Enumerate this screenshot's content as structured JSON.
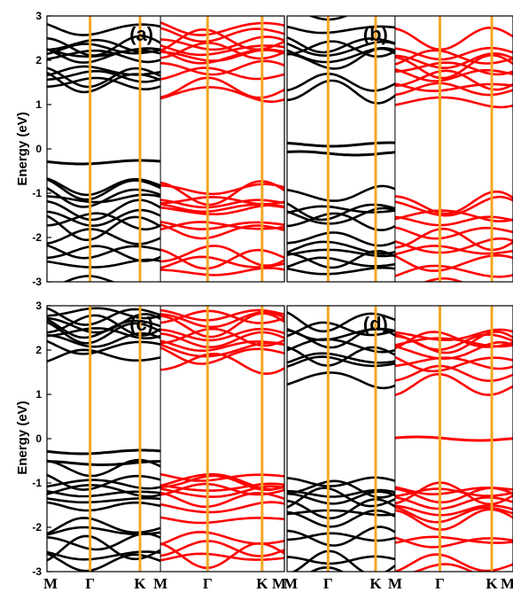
{
  "chart_data": [
    {
      "type": "line",
      "panel_label": "(a)",
      "ylabel": "Energy (eV)",
      "ylim": [
        -3,
        3
      ],
      "yticks": [
        "3",
        "2",
        "1",
        "0",
        "-1",
        "-2",
        "-3"
      ],
      "xticks": [
        "M",
        "Γ",
        "K",
        "M",
        "Γ",
        "K",
        "M"
      ],
      "sub_panels": [
        {
          "color": "#000000",
          "conduction_bands": [
            2.55,
            2.45,
            2.35,
            2.25,
            2.15,
            2.05,
            1.95,
            1.85,
            1.75,
            1.6,
            1.45,
            1.3
          ],
          "flat_bands": [
            -0.3
          ],
          "valence_bands": [
            -1.0,
            -1.1,
            -1.2,
            -1.3,
            -1.45,
            -1.55,
            -1.7,
            -1.85,
            -2.0,
            -2.2,
            -2.45,
            -2.7,
            -2.9
          ]
        },
        {
          "color": "#ff0000",
          "conduction_bands": [
            2.65,
            2.55,
            2.45,
            2.35,
            2.25,
            2.1,
            2.0,
            1.9,
            1.8,
            1.7,
            1.55,
            1.45
          ],
          "flat_bands": [],
          "valence_bands": [
            -1.0,
            -1.1,
            -1.2,
            -1.3,
            -1.4,
            -1.5,
            -1.65,
            -1.8,
            -2.0,
            -2.2,
            -2.45,
            -2.65,
            -2.85
          ]
        }
      ]
    },
    {
      "type": "line",
      "panel_label": "(b)",
      "ylabel": "",
      "ylim": [
        -3,
        3
      ],
      "yticks": [],
      "xticks": [
        "M",
        "Γ",
        "K",
        "M",
        "Γ",
        "K",
        "M"
      ],
      "sub_panels": [
        {
          "color": "#000000",
          "conduction_bands": [
            2.95,
            2.6,
            2.4,
            2.2,
            2.05,
            1.9,
            1.8,
            1.65,
            1.5
          ],
          "flat_bands": [
            0.1,
            -0.1
          ],
          "valence_bands": [
            -1.2,
            -1.3,
            -1.45,
            -1.6,
            -1.75,
            -1.9,
            -2.05,
            -2.25,
            -2.45,
            -2.65,
            -2.85
          ]
        },
        {
          "color": "#ff0000",
          "conduction_bands": [
            3.0,
            2.3,
            2.2,
            2.05,
            1.95,
            1.85,
            1.75,
            1.65,
            1.55,
            1.45,
            1.3,
            1.2
          ],
          "flat_bands": [],
          "valence_bands": [
            -1.35,
            -1.45,
            -1.55,
            -1.7,
            -1.85,
            -2.0,
            -2.2,
            -2.4,
            -2.6,
            -2.8,
            -2.95
          ]
        }
      ]
    },
    {
      "type": "line",
      "panel_label": "(c)",
      "ylabel": "Energy (eV)",
      "ylim": [
        -3,
        3
      ],
      "yticks": [
        "3",
        "2",
        "1",
        "0",
        "-1",
        "-2",
        "-3"
      ],
      "xticks": [
        "M",
        "Γ",
        "K",
        "M",
        "Γ",
        "K",
        "M"
      ],
      "sub_panels": [
        {
          "color": "#000000",
          "conduction_bands": [
            2.95,
            2.75,
            2.6,
            2.5,
            2.4,
            2.3,
            2.2,
            2.1,
            2.0,
            1.9
          ],
          "flat_bands": [
            -0.3,
            -0.55
          ],
          "valence_bands": [
            -0.8,
            -0.9,
            -1.0,
            -1.15,
            -1.3,
            -1.45,
            -1.6,
            -1.8,
            -2.0,
            -2.25,
            -2.5,
            -2.75,
            -2.95
          ]
        },
        {
          "color": "#ff0000",
          "conduction_bands": [
            2.85,
            2.7,
            2.55,
            2.45,
            2.35,
            2.25,
            2.1,
            2.0,
            1.9,
            1.8,
            1.7
          ],
          "flat_bands": [],
          "valence_bands": [
            -0.75,
            -0.85,
            -0.95,
            -1.05,
            -1.2,
            -1.35,
            -1.5,
            -1.7,
            -1.9,
            -2.1,
            -2.35,
            -2.6,
            -2.85
          ]
        }
      ]
    },
    {
      "type": "line",
      "panel_label": "(d)",
      "ylabel": "",
      "ylim": [
        -3,
        3
      ],
      "yticks": [],
      "xticks": [
        "M",
        "Γ",
        "K",
        "M",
        "Γ",
        "K",
        "M"
      ],
      "sub_panels": [
        {
          "color": "#000000",
          "conduction_bands": [
            2.6,
            2.45,
            2.3,
            2.2,
            2.1,
            1.95,
            1.85,
            1.7,
            1.55
          ],
          "flat_bands": [],
          "valence_bands": [
            -0.95,
            -1.05,
            -1.15,
            -1.3,
            -1.45,
            -1.6,
            -1.75,
            -1.95,
            -2.15,
            -2.4,
            -2.6,
            -2.8,
            -2.95
          ]
        },
        {
          "color": "#ff0000",
          "conduction_bands": [
            2.4,
            2.3,
            2.2,
            2.05,
            1.95,
            1.85,
            1.75,
            1.6,
            1.5,
            1.4
          ],
          "flat_bands": [
            0.0
          ],
          "valence_bands": [
            -1.05,
            -1.15,
            -1.25,
            -1.4,
            -1.55,
            -1.7,
            -1.85,
            -2.0,
            -2.2,
            -2.45,
            -2.65,
            -2.85
          ]
        }
      ]
    }
  ],
  "colors": {
    "spin_up": "#000000",
    "spin_down": "#ff0000",
    "kpoint_line": "#f5a623",
    "frame": "#000000"
  }
}
